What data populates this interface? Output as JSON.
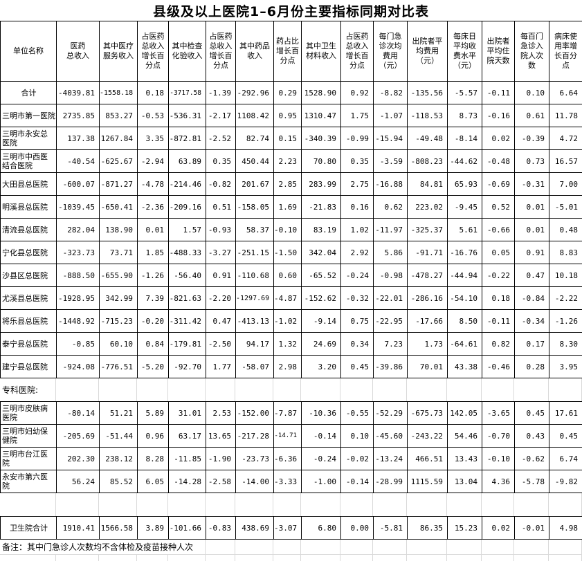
{
  "title": "县级及以上医院1–6月份主要指标同期对比表",
  "table": {
    "columns": [
      "单位名称",
      "医药\n总收入",
      "其中医疗\n服务收入",
      "占医药\n总收入\n增长百\n分点",
      "其中检查\n化验收入",
      "占医药\n总收入\n增长百\n分点",
      "其中药品\n收入",
      "药占比\n增长百\n分点",
      "其中卫生\n材料收入",
      "占医药\n总收入\n增长百\n分点",
      "每门急\n诊次均\n费用\n（元）",
      "出院者平\n均费用\n（元）",
      "每床日\n平均收\n费水平\n（元）",
      "出院者\n平均住\n院天数",
      "每百门\n急诊入\n院人次\n数",
      "病床使\n用率增\n长百分\n点"
    ],
    "section_label": "专科医院:",
    "footnote": "备注：其中门急诊人次数均不含体检及疫苗接种人次",
    "row_groups": {
      "county_hospitals": [
        {
          "name": "合计",
          "center": true,
          "values": [
            "-4039.81",
            "-1558.18",
            "0.18",
            "-3717.58",
            "-1.39",
            "-292.96",
            "0.29",
            "1528.90",
            "0.92",
            "-8.82",
            "-135.56",
            "-5.57",
            "-0.11",
            "0.10",
            "6.64"
          ]
        },
        {
          "name": "三明市第一医院",
          "values": [
            "2735.85",
            "853.27",
            "-0.53",
            "-536.31",
            "-2.17",
            "1108.42",
            "0.95",
            "1310.47",
            "1.75",
            "-1.07",
            "-118.53",
            "8.73",
            "-0.16",
            "0.61",
            "11.78"
          ]
        },
        {
          "name": "三明市永安总\n医院",
          "values": [
            "137.38",
            "1267.84",
            "3.35",
            "-872.81",
            "-2.52",
            "82.74",
            "0.15",
            "-340.39",
            "-0.99",
            "-15.94",
            "-49.48",
            "-8.14",
            "0.02",
            "-0.39",
            "4.72"
          ]
        },
        {
          "name": "三明市中西医\n结合医院",
          "values": [
            "-40.54",
            "-625.67",
            "-2.94",
            "63.89",
            "0.35",
            "450.44",
            "2.23",
            "70.80",
            "0.35",
            "-3.59",
            "-808.23",
            "-44.62",
            "-0.48",
            "0.73",
            "16.57"
          ]
        },
        {
          "name": "大田县总医院",
          "values": [
            "-600.07",
            "-871.27",
            "-4.78",
            "-214.46",
            "-0.82",
            "201.67",
            "2.85",
            "283.99",
            "2.75",
            "-16.88",
            "84.81",
            "65.93",
            "-0.69",
            "-0.31",
            "7.00"
          ]
        },
        {
          "name": "明溪县总医院",
          "values": [
            "-1039.45",
            "-650.41",
            "-2.36",
            "-209.16",
            "0.51",
            "-158.05",
            "1.69",
            "-21.83",
            "0.16",
            "0.62",
            "223.02",
            "-9.45",
            "0.52",
            "0.01",
            "-5.01"
          ]
        },
        {
          "name": "清流县总医院",
          "values": [
            "282.04",
            "138.90",
            "0.01",
            "1.57",
            "-0.93",
            "58.37",
            "-0.10",
            "83.19",
            "1.02",
            "-11.97",
            "-325.37",
            "5.61",
            "-0.66",
            "0.01",
            "0.48"
          ]
        },
        {
          "name": "宁化县总医院",
          "values": [
            "-323.73",
            "73.71",
            "1.85",
            "-488.33",
            "-3.27",
            "-251.15",
            "-1.50",
            "342.04",
            "2.92",
            "5.86",
            "-91.71",
            "-16.76",
            "0.05",
            "0.91",
            "8.83"
          ]
        },
        {
          "name": "沙县区总医院",
          "values": [
            "-888.50",
            "-655.90",
            "-1.26",
            "-56.40",
            "0.91",
            "-110.68",
            "0.60",
            "-65.52",
            "-0.24",
            "-0.98",
            "-478.27",
            "-44.94",
            "-0.22",
            "0.47",
            "10.18"
          ]
        },
        {
          "name": "尤溪县总医院",
          "values": [
            "-1928.95",
            "342.99",
            "7.39",
            "-821.63",
            "-2.20",
            "-1297.69",
            "-4.87",
            "-152.62",
            "-0.32",
            "-22.01",
            "-286.16",
            "-54.10",
            "0.18",
            "-0.84",
            "-2.22"
          ]
        },
        {
          "name": "将乐县总医院",
          "values": [
            "-1448.92",
            "-715.23",
            "-0.20",
            "-311.42",
            "0.47",
            "-413.13",
            "-1.02",
            "-9.14",
            "0.75",
            "-22.95",
            "-17.66",
            "8.50",
            "-0.11",
            "-0.34",
            "-1.26"
          ]
        },
        {
          "name": "泰宁县总医院",
          "values": [
            "-0.85",
            "60.10",
            "0.84",
            "-179.81",
            "-2.50",
            "94.17",
            "1.32",
            "24.69",
            "0.34",
            "7.23",
            "1.73",
            "-64.61",
            "0.82",
            "0.17",
            "8.30"
          ]
        },
        {
          "name": "建宁县总医院",
          "values": [
            "-924.08",
            "-776.51",
            "-5.20",
            "-92.70",
            "1.77",
            "-58.07",
            "2.98",
            "3.20",
            "0.45",
            "-39.86",
            "70.01",
            "43.38",
            "-0.46",
            "0.28",
            "3.95"
          ]
        }
      ],
      "specialized_hospitals": [
        {
          "name": "三明市皮肤病\n医院",
          "values": [
            "-80.14",
            "51.21",
            "5.89",
            "31.01",
            "2.53",
            "-152.00",
            "-7.87",
            "-10.36",
            "-0.55",
            "-52.29",
            "-675.73",
            "142.05",
            "-3.65",
            "0.45",
            "17.61"
          ]
        },
        {
          "name": "三明市妇幼保\n健院",
          "values": [
            "-205.69",
            "-51.44",
            "0.96",
            "63.17",
            "13.65",
            "-217.28",
            "-14.71",
            "-0.14",
            "0.10",
            "-45.60",
            "-243.22",
            "54.46",
            "-0.70",
            "0.43",
            "0.45"
          ]
        },
        {
          "name": "三明市台江医\n院",
          "values": [
            "202.30",
            "238.12",
            "8.28",
            "-11.85",
            "-1.90",
            "-23.73",
            "-6.36",
            "-0.24",
            "-0.02",
            "-13.24",
            "466.51",
            "13.43",
            "-0.10",
            "-0.62",
            "6.74"
          ]
        },
        {
          "name": "永安市第六医\n院",
          "values": [
            "56.24",
            "85.52",
            "6.05",
            "-14.28",
            "-2.58",
            "-14.00",
            "-3.33",
            "-1.00",
            "-0.14",
            "-28.99",
            "1115.59",
            "13.04",
            "4.36",
            "-5.78",
            "-9.82"
          ]
        }
      ],
      "health_centers": [
        {
          "name": "卫生院合计",
          "center": true,
          "values": [
            "1910.41",
            "1566.58",
            "3.89",
            "-101.66",
            "-0.83",
            "438.69",
            "-3.07",
            "6.80",
            "0.00",
            "-5.81",
            "86.35",
            "15.23",
            "0.02",
            "-0.01",
            "4.98"
          ]
        }
      ]
    }
  }
}
